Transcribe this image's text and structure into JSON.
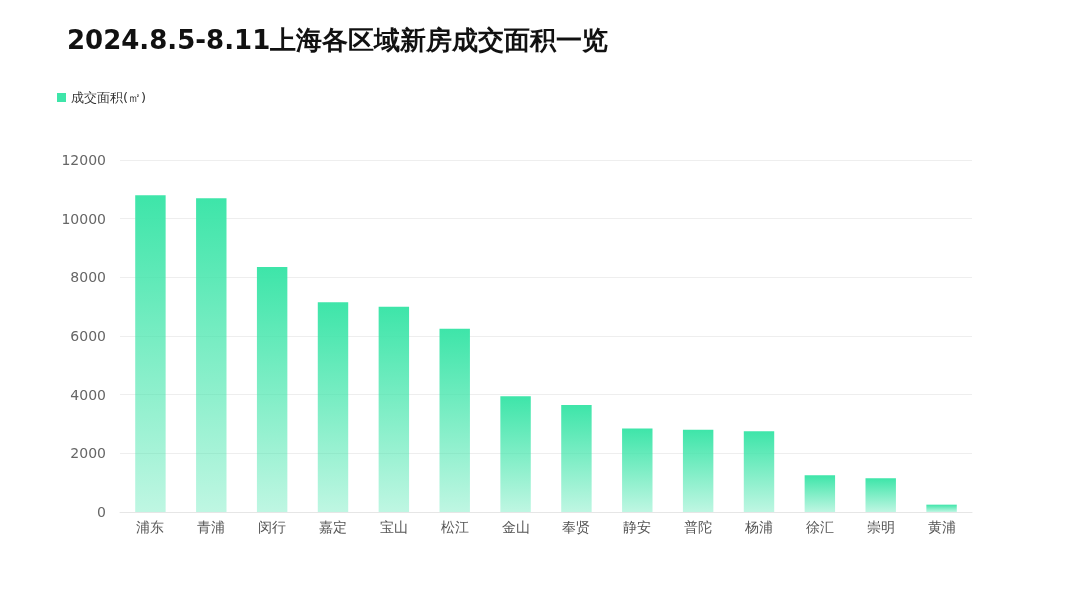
{
  "chart_data": {
    "type": "bar",
    "title": "2024.8.5-8.11上海各区域新房成交面积一览",
    "categories": [
      "浦东",
      "青浦",
      "闵行",
      "嘉定",
      "宝山",
      "松江",
      "金山",
      "奉贤",
      "静安",
      "普陀",
      "杨浦",
      "徐汇",
      "崇明",
      "黄浦"
    ],
    "series": [
      {
        "name": "成交面积(㎡)",
        "color": "#3ee5a9",
        "values": [
          10800,
          10700,
          8350,
          7150,
          7000,
          6250,
          3950,
          3650,
          2850,
          2800,
          2750,
          1250,
          1150,
          250
        ]
      }
    ],
    "ylim": [
      0,
      12000
    ],
    "yticks": [
      0,
      2000,
      4000,
      6000,
      8000,
      10000,
      12000
    ],
    "grid": "y",
    "legend": "top left"
  }
}
